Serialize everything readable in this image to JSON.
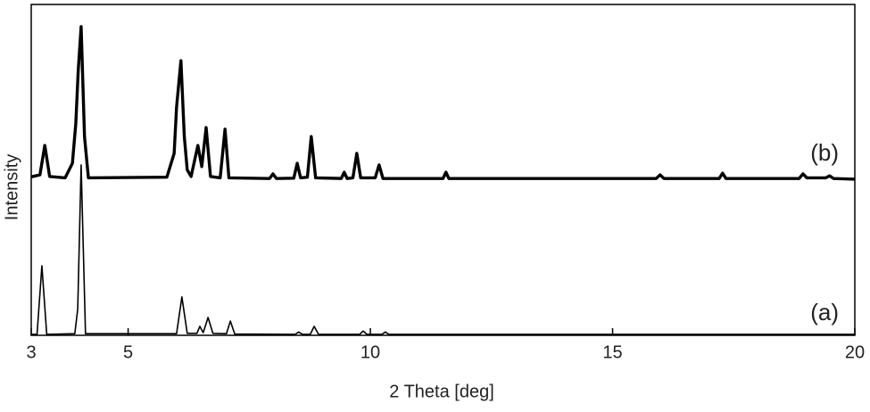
{
  "chart_data": {
    "type": "line",
    "xlabel": "2 Theta [deg]",
    "ylabel": "Intensity",
    "xlim": [
      3,
      20
    ],
    "xticks": [
      3,
      5,
      10,
      15,
      20
    ],
    "ylim": [
      0,
      100
    ],
    "yticks": [],
    "series": [
      {
        "name": "(a)",
        "color": "#000000",
        "x": [
          3.0,
          3.12,
          3.22,
          3.32,
          3.9,
          3.96,
          4.03,
          4.12,
          6.0,
          6.11,
          6.22,
          6.42,
          6.48,
          6.55,
          6.65,
          6.75,
          7.03,
          7.11,
          7.2,
          8.45,
          8.52,
          8.6,
          8.76,
          8.84,
          8.93,
          9.78,
          9.85,
          9.93,
          10.24,
          10.31,
          10.38,
          20
        ],
        "values": [
          0.3,
          0.3,
          21,
          0.3,
          0.5,
          8,
          51.5,
          0.5,
          0.5,
          11.6,
          0.6,
          0.6,
          2.7,
          0.8,
          5.4,
          0.6,
          0.5,
          4.3,
          0.4,
          0.3,
          1,
          0.3,
          0.3,
          2.7,
          0.3,
          0.3,
          1.3,
          0.3,
          0.3,
          1,
          0.3,
          0.3
        ]
      },
      {
        "name": "(b)",
        "color": "#000000",
        "x": [
          3.0,
          3.18,
          3.28,
          3.38,
          3.7,
          3.85,
          3.92,
          3.97,
          4.03,
          4.1,
          4.18,
          5.8,
          5.95,
          6.0,
          6.09,
          6.16,
          6.22,
          6.3,
          6.44,
          6.52,
          6.61,
          6.7,
          6.9,
          7.0,
          7.08,
          7.92,
          7.99,
          8.06,
          8.42,
          8.49,
          8.56,
          8.7,
          8.78,
          8.87,
          9.4,
          9.46,
          9.52,
          9.64,
          9.72,
          9.8,
          10.1,
          10.18,
          10.26,
          11.5,
          11.56,
          11.62,
          15.9,
          15.98,
          16.06,
          17.2,
          17.27,
          17.34,
          18.85,
          18.93,
          19.01,
          19.4,
          19.48,
          19.56,
          20
        ],
        "values": [
          47.9,
          48.5,
          57.4,
          48,
          47.6,
          52,
          64,
          80,
          93.3,
          60,
          47.6,
          47.8,
          55,
          69,
          83,
          60,
          50,
          48,
          57.4,
          51,
          62.8,
          48,
          47.6,
          62.3,
          47.6,
          47.4,
          48.8,
          47.4,
          47.5,
          52,
          47.6,
          47.8,
          60.1,
          47.6,
          47.4,
          49.3,
          47.4,
          47.6,
          55,
          47.6,
          47.6,
          51.5,
          47.4,
          47.4,
          49.3,
          47.4,
          47.4,
          48.5,
          47.4,
          47.4,
          49,
          47.4,
          47.4,
          48.8,
          47.6,
          47.6,
          48.2,
          47.4,
          47.2
        ]
      }
    ]
  }
}
